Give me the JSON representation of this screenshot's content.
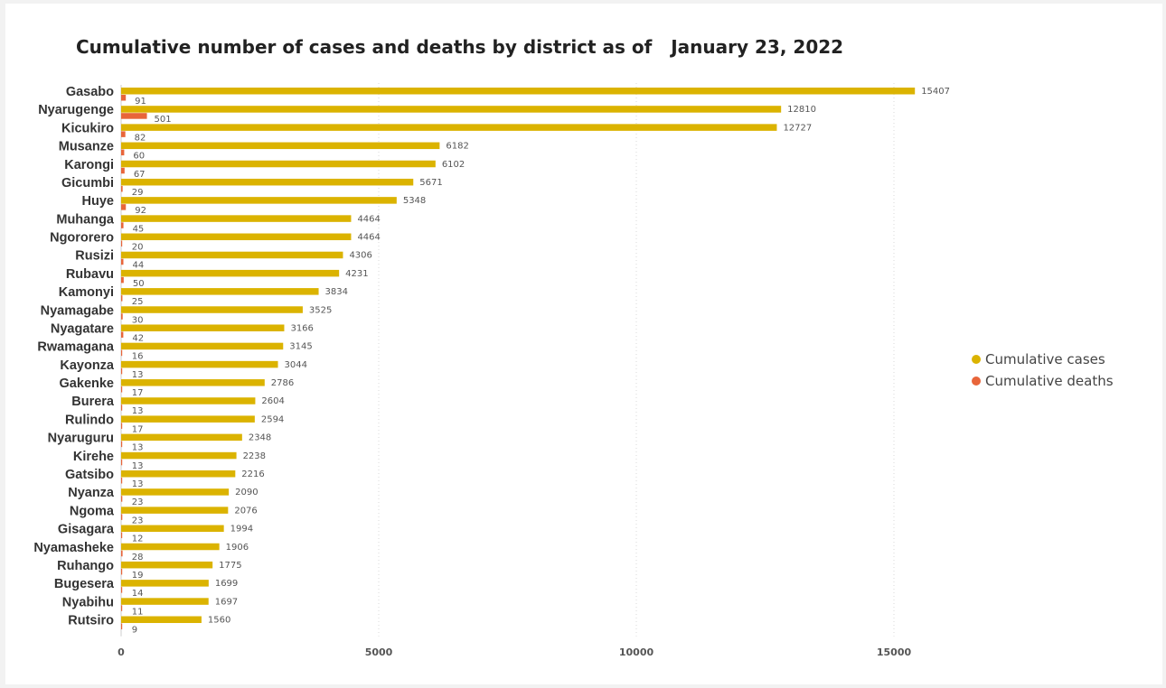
{
  "chart_data": {
    "type": "bar",
    "orientation": "horizontal",
    "title": "Cumulative number of cases and deaths by district as of   January 23, 2022",
    "categories": [
      "Gasabo",
      "Nyarugenge",
      "Kicukiro",
      "Musanze",
      "Karongi",
      "Gicumbi",
      "Huye",
      "Muhanga",
      "Ngororero",
      "Rusizi",
      "Rubavu",
      "Kamonyi",
      "Nyamagabe",
      "Nyagatare",
      "Rwamagana",
      "Kayonza",
      "Gakenke",
      "Burera",
      "Rulindo",
      "Nyaruguru",
      "Kirehe",
      "Gatsibo",
      "Nyanza",
      "Ngoma",
      "Gisagara",
      "Nyamasheke",
      "Ruhango",
      "Bugesera",
      "Nyabihu",
      "Rutsiro"
    ],
    "series": [
      {
        "name": "Cumulative cases",
        "color": "#dbb300",
        "values": [
          15407,
          12810,
          12727,
          6182,
          6102,
          5671,
          5348,
          4464,
          4464,
          4306,
          4231,
          3834,
          3525,
          3166,
          3145,
          3044,
          2786,
          2604,
          2594,
          2348,
          2238,
          2216,
          2090,
          2076,
          1994,
          1906,
          1775,
          1699,
          1697,
          1560
        ]
      },
      {
        "name": "Cumulative deaths",
        "color": "#e8653a",
        "values": [
          91,
          501,
          82,
          60,
          67,
          29,
          92,
          45,
          20,
          44,
          50,
          25,
          30,
          42,
          16,
          13,
          17,
          13,
          17,
          13,
          13,
          13,
          23,
          23,
          12,
          28,
          19,
          14,
          11,
          9
        ]
      }
    ],
    "xlim": [
      0,
      17800
    ],
    "xticks": [
      0,
      5000,
      10000,
      15000
    ],
    "grid": true,
    "legend_position": "right"
  }
}
